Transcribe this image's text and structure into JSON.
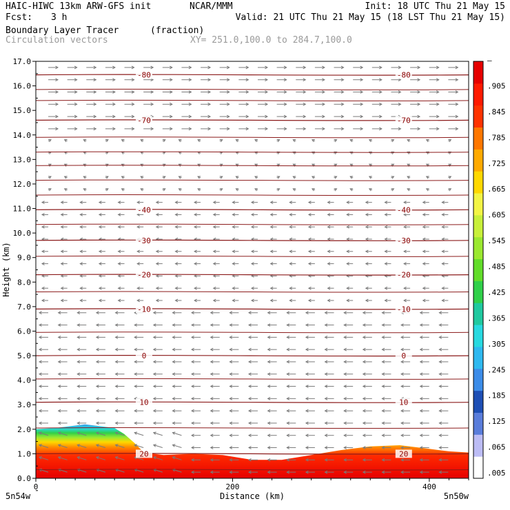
{
  "header": {
    "model": "HAIC-HIWC 13km ARW-GFS init",
    "org": "NCAR/MMM",
    "init": "Init: 18 UTC Thu 21 May 15",
    "fcst_label": "Fcst:",
    "fcst_value": "3 h",
    "valid": "Valid: 21 UTC Thu 21 May 15 (18 LST Thu 21 May 15)",
    "field1_name": "Boundary Layer Tracer",
    "field1_units": "(fraction)",
    "field2_name": "Circulation vectors",
    "xy_range": "XY= 251.0,100.0 to 284.7,100.0"
  },
  "chart_data": {
    "type": "heatmap",
    "title": "Boundary Layer Tracer",
    "xlabel": "Distance (km)",
    "ylabel": "Height (km)",
    "xlim": [
      0,
      440
    ],
    "ylim": [
      0,
      17
    ],
    "x_ticks": [
      0,
      200,
      400
    ],
    "y_ticks": [
      "0.0",
      "1.0",
      "2.0",
      "3.0",
      "4.0",
      "5.0",
      "6.0",
      "7.0",
      "8.0",
      "9.0",
      "10.0",
      "11.0",
      "12.0",
      "13.0",
      "14.0",
      "15.0",
      "16.0",
      "17.0"
    ],
    "x_endpoints": {
      "left": "5n54w",
      "right": "5n50w"
    },
    "tracer_top_km": {
      "x": [
        0,
        20,
        40,
        50,
        60,
        80,
        90,
        100,
        110,
        130,
        160,
        190,
        220,
        250,
        280,
        310,
        340,
        370,
        400,
        420,
        440
      ],
      "y": [
        2.0,
        2.05,
        2.15,
        2.2,
        2.15,
        2.05,
        1.8,
        1.45,
        1.05,
        0.95,
        1.0,
        0.95,
        0.75,
        0.75,
        0.95,
        1.15,
        1.3,
        1.35,
        1.2,
        1.1,
        1.05
      ]
    },
    "isotherms": [
      {
        "label": "-80",
        "km": 16.45
      },
      {
        "label": "-70",
        "km": 14.6
      },
      {
        "label": "-40",
        "km": 10.95
      },
      {
        "label": "-30",
        "km": 9.7
      },
      {
        "label": "-20",
        "km": 8.3
      },
      {
        "label": "-10",
        "km": 6.9
      },
      {
        "label": "0",
        "km": 5.0
      },
      {
        "label": "10",
        "km": 3.1
      },
      {
        "label": "20",
        "km": 1.0
      }
    ],
    "colorbar": {
      "colors": [
        "#ffffff",
        "#bcbcf5",
        "#5a7ddb",
        "#1e4fb5",
        "#3c8ce8",
        "#2fb9f0",
        "#28d9e0",
        "#20c9a0",
        "#30d04a",
        "#62dd2a",
        "#9be830",
        "#c8f03a",
        "#f3f545",
        "#ffd800",
        "#ffaa00",
        "#ff7700",
        "#ff3300",
        "#ff1a00",
        "#e60000"
      ],
      "labels": [
        ".005",
        ".065",
        ".125",
        ".185",
        ".245",
        ".305",
        ".365",
        ".425",
        ".485",
        ".545",
        ".605",
        ".665",
        ".725",
        ".785",
        ".845",
        ".905",
        "–"
      ]
    }
  }
}
